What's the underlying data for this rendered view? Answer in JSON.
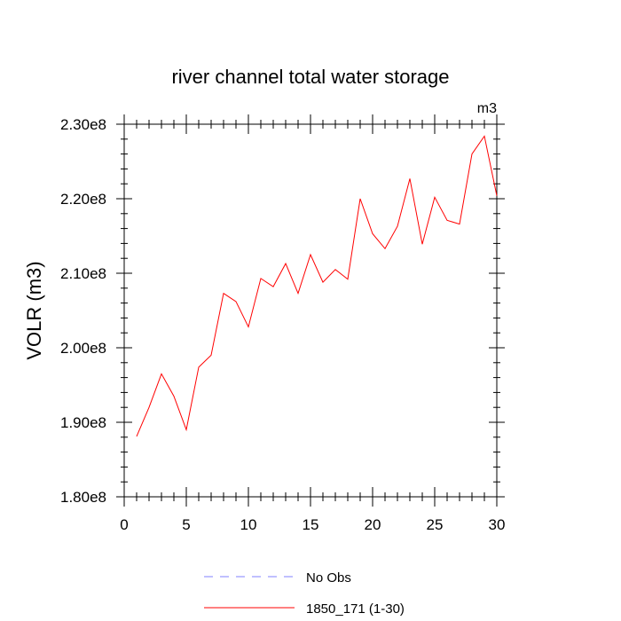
{
  "chart_data": {
    "type": "line",
    "title": "river channel total water storage",
    "units_label": "m3",
    "xlabel": "",
    "ylabel": "VOLR  (m3)",
    "xlim": [
      0,
      30
    ],
    "ylim": [
      180000000,
      230000000
    ],
    "x_ticks": [
      0,
      5,
      10,
      15,
      20,
      25,
      30
    ],
    "x_tick_labels": [
      "0",
      "5",
      "10",
      "15",
      "20",
      "25",
      "30"
    ],
    "y_ticks": [
      180000000,
      190000000,
      200000000,
      210000000,
      220000000,
      230000000
    ],
    "y_tick_labels": [
      "1.80e8",
      "1.90e8",
      "2.00e8",
      "2.10e8",
      "2.20e8",
      "2.30e8"
    ],
    "x": [
      1,
      2,
      3,
      4,
      5,
      6,
      7,
      8,
      9,
      10,
      11,
      12,
      13,
      14,
      15,
      16,
      17,
      18,
      19,
      20,
      21,
      22,
      23,
      24,
      25,
      26,
      27,
      28,
      29,
      30
    ],
    "series": [
      {
        "name": "1850_171 (1-30)",
        "color": "#ff0000",
        "values": [
          188.1,
          192.0,
          196.5,
          193.5,
          189.0,
          197.4,
          199.0,
          207.3,
          206.2,
          202.8,
          209.3,
          208.2,
          211.3,
          207.3,
          212.5,
          208.8,
          210.5,
          209.2,
          220.0,
          215.3,
          213.3,
          216.3,
          222.7,
          213.9,
          220.2,
          217.1,
          216.6,
          226.0,
          228.4,
          220.4
        ]
      }
    ],
    "values_scale": 1000000,
    "legend": [
      {
        "label": "No Obs",
        "style": "dashed",
        "color": "#8080ff"
      },
      {
        "label": "1850_171 (1-30)",
        "style": "solid",
        "color": "#ff0000"
      }
    ],
    "legend_position": "bottom-center"
  }
}
